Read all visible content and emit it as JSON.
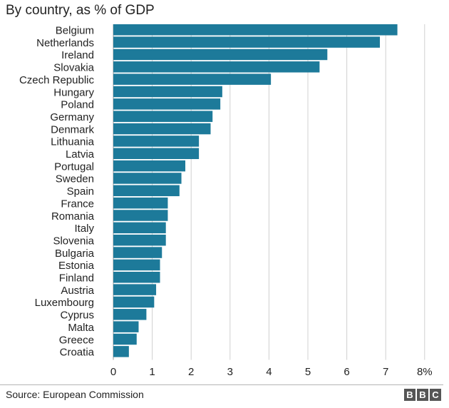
{
  "title": "By country, as % of GDP",
  "source": "Source: European Commission",
  "logo_letters": [
    "B",
    "B",
    "C"
  ],
  "colors": {
    "bar": "#1d7a9a",
    "grid": "#d0d0d0",
    "text": "#222222"
  },
  "chart_data": {
    "type": "bar",
    "orientation": "horizontal",
    "title": "By country, as % of GDP",
    "categories": [
      "Belgium",
      "Netherlands",
      "Ireland",
      "Slovakia",
      "Czech Republic",
      "Hungary",
      "Poland",
      "Germany",
      "Denmark",
      "Lithuania",
      "Latvia",
      "Portugal",
      "Sweden",
      "Spain",
      "France",
      "Romania",
      "Italy",
      "Slovenia",
      "Bulgaria",
      "Estonia",
      "Finland",
      "Austria",
      "Luxembourg",
      "Cyprus",
      "Malta",
      "Greece",
      "Croatia"
    ],
    "values": [
      7.3,
      6.85,
      5.5,
      5.3,
      4.05,
      2.8,
      2.75,
      2.55,
      2.5,
      2.2,
      2.2,
      1.85,
      1.75,
      1.7,
      1.4,
      1.4,
      1.35,
      1.35,
      1.25,
      1.2,
      1.2,
      1.1,
      1.05,
      0.85,
      0.65,
      0.6,
      0.4
    ],
    "xlim": [
      0,
      8
    ],
    "xticks": [
      "0",
      "1",
      "2",
      "3",
      "4",
      "5",
      "6",
      "7",
      "8%"
    ],
    "grid": true
  }
}
